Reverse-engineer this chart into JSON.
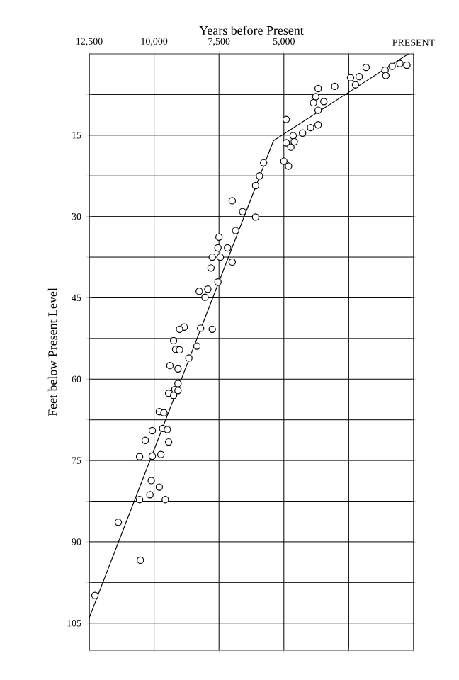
{
  "chart_data": {
    "type": "scatter",
    "xlabel": "Years before Present",
    "ylabel": "Feet below Present Level",
    "xlim": [
      12500,
      0
    ],
    "ylim": [
      110,
      0
    ],
    "xticks": [
      {
        "value": 12500,
        "label": "12,500"
      },
      {
        "value": 10000,
        "label": "10,000"
      },
      {
        "value": 7500,
        "label": "7,500"
      },
      {
        "value": 5000,
        "label": "5,000"
      },
      {
        "value": 2500,
        "label": null
      },
      {
        "value": 0,
        "label": "PRESENT"
      }
    ],
    "yticks": [
      {
        "value": 7.5,
        "label": null
      },
      15,
      {
        "value": 22.5,
        "label": null
      },
      30,
      {
        "value": 37.5,
        "label": null
      },
      45,
      {
        "value": 52.5,
        "label": null
      },
      60,
      {
        "value": 67.5,
        "label": null
      },
      75,
      {
        "value": 82.5,
        "label": null
      },
      90,
      {
        "value": 97.5,
        "label": null
      },
      105
    ],
    "grid": true,
    "series": [
      {
        "marker": "circle",
        "color": "#000000",
        "x": [
          1830,
          2430,
          2100,
          2240,
          3040,
          3680,
          3770,
          3460,
          3860,
          3680,
          4910,
          3680,
          3970,
          4280,
          4640,
          4600,
          4910,
          4730,
          5000,
          4820,
          5780,
          5940,
          6090,
          6990,
          6590,
          6090,
          1100,
          830,
          530,
          260,
          1070,
          6860,
          7500,
          7540,
          7170,
          7760,
          7450,
          6990,
          7810,
          7540,
          8260,
          7930,
          8040,
          8840,
          9020,
          8210,
          7760,
          9250,
          9170,
          9020,
          8350,
          8660,
          9390,
          9080,
          9080,
          9200,
          9080,
          9440,
          9250,
          9800,
          9620,
          9670,
          10070,
          9490,
          10340,
          9440,
          10560,
          10070,
          9740,
          10110,
          9800,
          10160,
          10560,
          9570,
          11380,
          10530,
          12280
        ],
        "values": [
          2.5,
          4.4,
          4.2,
          5.7,
          6.0,
          6.4,
          7.9,
          8.8,
          9.0,
          10.4,
          12.1,
          13.1,
          13.6,
          14.6,
          15.1,
          16.2,
          16.4,
          17.2,
          19.8,
          20.7,
          20.1,
          22.5,
          24.3,
          27.1,
          29.1,
          30.1,
          3.0,
          2.3,
          1.8,
          2.1,
          4.0,
          32.6,
          33.8,
          35.8,
          35.8,
          37.5,
          37.5,
          38.4,
          39.5,
          42.1,
          43.8,
          43.4,
          44.9,
          50.4,
          50.8,
          50.6,
          50.8,
          52.9,
          54.5,
          54.6,
          53.9,
          56.1,
          57.5,
          58.1,
          60.8,
          61.9,
          62.1,
          62.6,
          63.0,
          66.0,
          66.2,
          69.1,
          69.5,
          69.3,
          71.3,
          71.6,
          74.3,
          74.2,
          73.9,
          78.7,
          79.9,
          81.3,
          82.2,
          82.2,
          86.4,
          93.4,
          99.9
        ]
      },
      {
        "type": "line",
        "color": "#000000",
        "x": [
          12500,
          5400,
          200
        ],
        "values": [
          104,
          16,
          0
        ]
      }
    ]
  }
}
